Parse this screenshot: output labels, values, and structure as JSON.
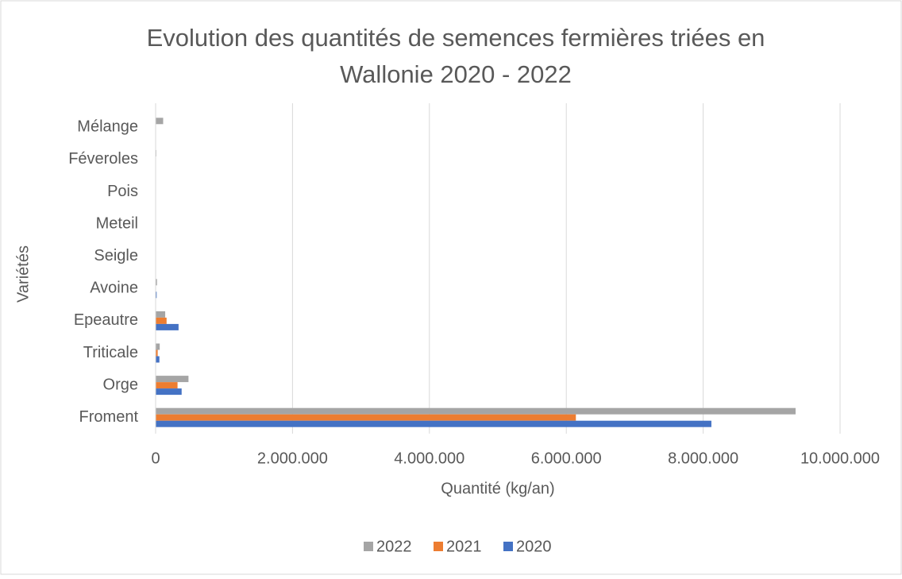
{
  "chart_data": {
    "type": "bar",
    "orientation": "horizontal",
    "title": "Evolution des quantités de semences fermières triées en Wallonie 2020 - 2022",
    "title_lines": [
      "Evolution des quantités de semences fermières triées en",
      "Wallonie 2020 - 2022"
    ],
    "xlabel": "Quantité (kg/an)",
    "ylabel": "Variétés",
    "categories": [
      "Froment",
      "Orge",
      "Triticale",
      "Epeautre",
      "Avoine",
      "Seigle",
      "Meteil",
      "Pois",
      "Féveroles",
      "Mélange"
    ],
    "series": [
      {
        "name": "2022",
        "color": "#a5a5a5",
        "values": [
          9350000,
          480000,
          60000,
          140000,
          20000,
          5000,
          0,
          0,
          10000,
          110000
        ]
      },
      {
        "name": "2021",
        "color": "#ed7d31",
        "values": [
          6140000,
          320000,
          30000,
          160000,
          5000,
          0,
          0,
          0,
          0,
          0
        ]
      },
      {
        "name": "2020",
        "color": "#4472c4",
        "values": [
          8120000,
          380000,
          55000,
          335000,
          15000,
          0,
          0,
          0,
          0,
          0
        ]
      }
    ],
    "xlim": [
      0,
      10000000
    ],
    "xticks": [
      0,
      {
        "value": 2000000,
        "label": "2.000.000"
      },
      {
        "value": 4000000,
        "label": "4.000.000"
      },
      {
        "value": 6000000,
        "label": "6.000.000"
      },
      {
        "value": 8000000,
        "label": "8.000.000"
      },
      {
        "value": 10000000,
        "label": "10.000.000"
      }
    ],
    "grid": true,
    "legend": "bottom"
  }
}
